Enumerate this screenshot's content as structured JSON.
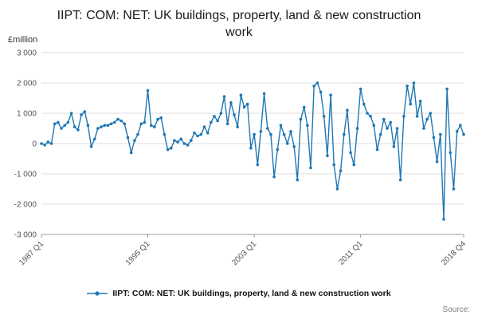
{
  "chart_data": {
    "type": "line",
    "title": "IIPT: COM: NET: UK buildings, property, land & new construction work",
    "unit_label": "£million",
    "ylim": [
      -3000,
      3000
    ],
    "grid": "horizontal",
    "legend_position": "bottom",
    "color": "#1f77b4",
    "x_start": "1987 Q1",
    "x_end": "2018 Q4",
    "frequency": "quarterly",
    "yticks": [
      {
        "value": 3000,
        "label": "3 000"
      },
      {
        "value": 2000,
        "label": "2 000"
      },
      {
        "value": 1000,
        "label": "1 000"
      },
      {
        "value": 0,
        "label": "0"
      },
      {
        "value": -1000,
        "label": "-1 000"
      },
      {
        "value": -2000,
        "label": "-2 000"
      },
      {
        "value": -3000,
        "label": "-3 000"
      }
    ],
    "xticks": [
      {
        "index": 0,
        "label": "1987 Q1"
      },
      {
        "index": 32,
        "label": "1995 Q1"
      },
      {
        "index": 64,
        "label": "2003 Q1"
      },
      {
        "index": 96,
        "label": "2011 Q1"
      },
      {
        "index": 127,
        "label": "2018 Q4"
      }
    ],
    "values": [
      0,
      -50,
      50,
      0,
      650,
      700,
      500,
      600,
      700,
      1000,
      550,
      450,
      950,
      1050,
      600,
      -100,
      150,
      500,
      550,
      600,
      600,
      650,
      700,
      800,
      750,
      650,
      200,
      -300,
      100,
      300,
      650,
      700,
      1750,
      600,
      550,
      800,
      850,
      300,
      -200,
      -150,
      100,
      50,
      150,
      0,
      -50,
      100,
      350,
      250,
      300,
      550,
      350,
      700,
      900,
      750,
      1000,
      1550,
      650,
      1350,
      950,
      550,
      1600,
      1200,
      1300,
      -150,
      300,
      -700,
      400,
      1650,
      500,
      300,
      -1100,
      -200,
      600,
      300,
      0,
      400,
      -100,
      -1200,
      800,
      1200,
      600,
      -800,
      1900,
      2000,
      1700,
      900,
      -400,
      1600,
      -700,
      -1500,
      -900,
      300,
      1100,
      -300,
      -700,
      500,
      1800,
      1300,
      1000,
      900,
      600,
      -200,
      300,
      800,
      500,
      700,
      -100,
      500,
      -1200,
      900,
      1900,
      1300,
      2000,
      900,
      1400,
      500,
      800,
      1000,
      200,
      -600,
      300,
      -2500,
      1800,
      -300,
      -1500,
      400,
      600,
      300
    ]
  },
  "legend": {
    "label": "IIPT: COM: NET: UK buildings, property, land & new construction work"
  },
  "footer": {
    "source_label": "Source:"
  }
}
